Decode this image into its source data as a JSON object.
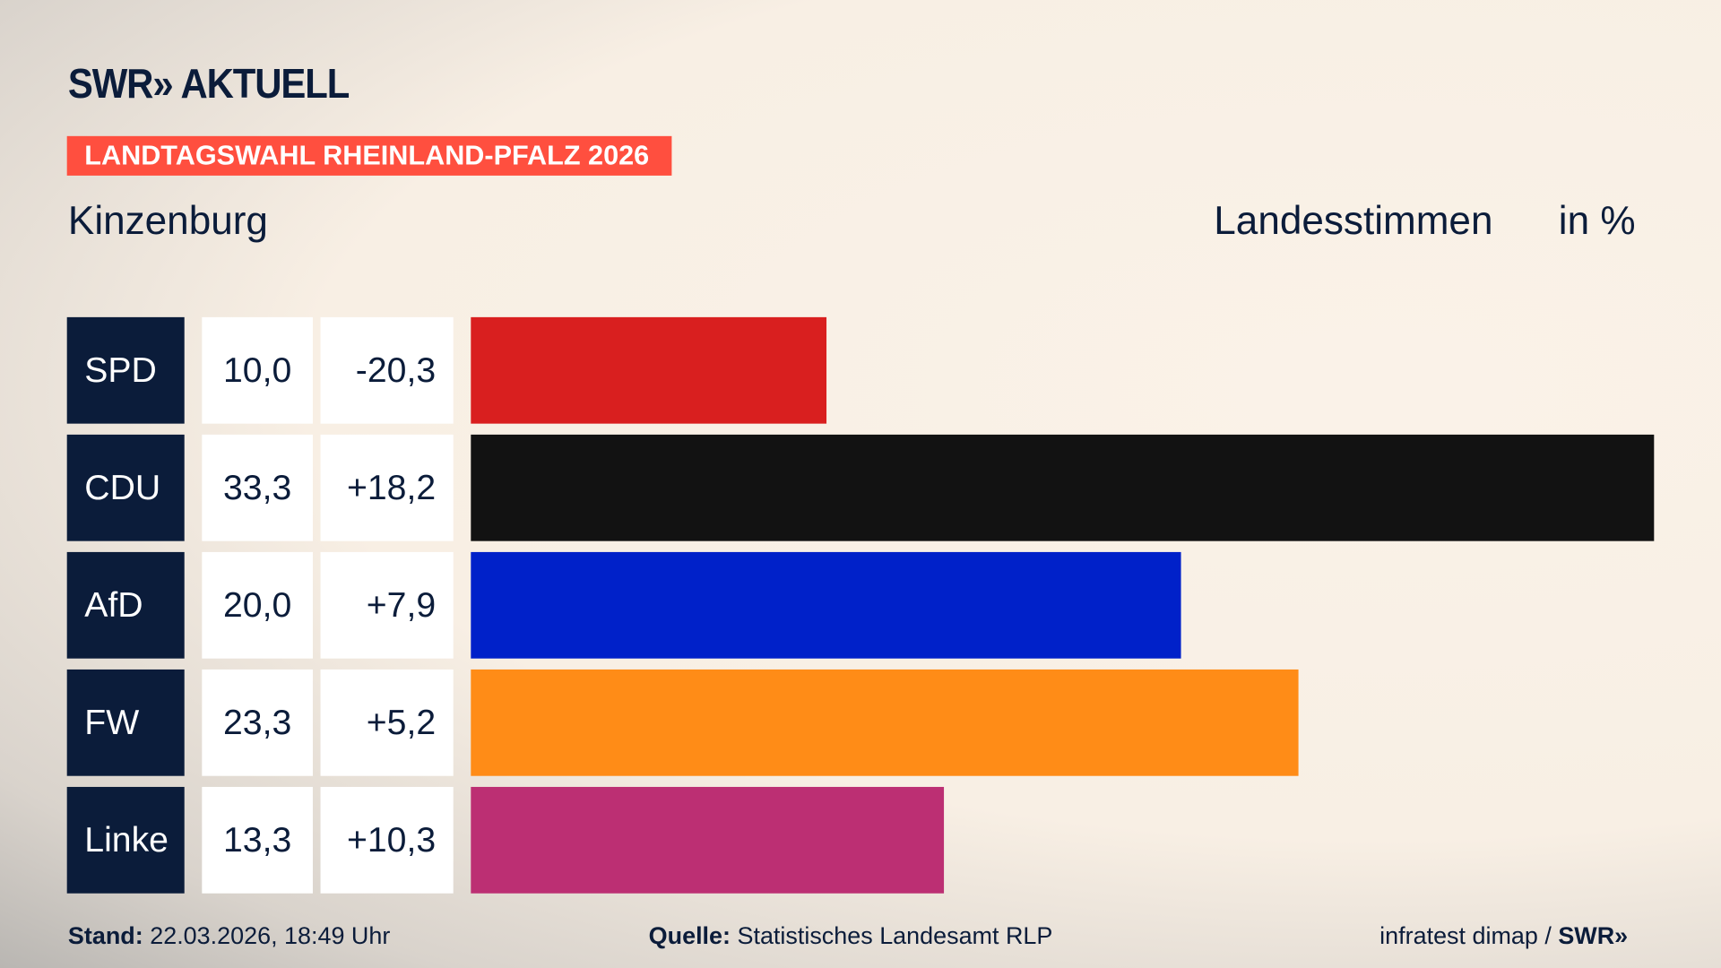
{
  "header": {
    "logo": "SWR» AKTUELL",
    "badge": "LANDTAGSWAHL RHEINLAND-PFALZ 2026",
    "place": "Kinzenburg",
    "measure": "Landesstimmen",
    "unit": "in %"
  },
  "chart_data": {
    "type": "bar",
    "orientation": "horizontal",
    "categories": [
      "SPD",
      "CDU",
      "AfD",
      "FW",
      "Linke"
    ],
    "values": [
      10.0,
      33.3,
      20.0,
      23.3,
      13.3
    ],
    "value_labels": [
      "10,0",
      "33,3",
      "20,0",
      "23,3",
      "13,3"
    ],
    "diff_labels": [
      "-20,3",
      "+18,2",
      "+7,9",
      "+5,2",
      "+10,3"
    ],
    "diffs": [
      -20.3,
      18.2,
      7.9,
      5.2,
      10.3
    ],
    "colors": [
      "#d91f1f",
      "#121212",
      "#0021c9",
      "#ff8c17",
      "#bc2f73"
    ],
    "xlim": [
      0,
      33.3
    ],
    "grid": false
  },
  "footer": {
    "stand_label": "Stand:",
    "stand_value": "22.03.2026, 18:49 Uhr",
    "source_label": "Quelle:",
    "source_value": "Statistisches Landesamt RLP",
    "credit": "infratest dimap / ",
    "credit_logo": "SWR»"
  }
}
